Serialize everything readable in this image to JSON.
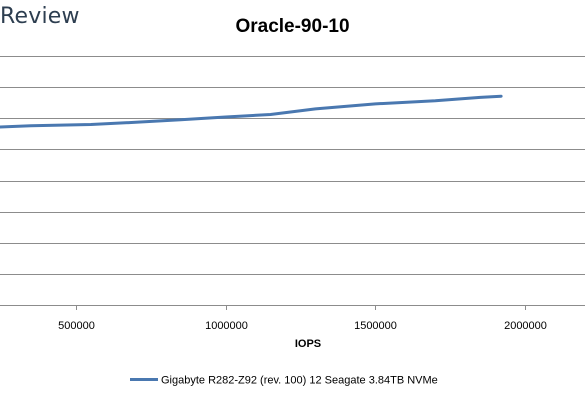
{
  "brand": {
    "text": "Review"
  },
  "chart_data": {
    "type": "line",
    "title": "Oracle-90-10",
    "xlabel": "IOPS",
    "ylabel": "",
    "xlim": [
      200000,
      2200000
    ],
    "ylim": [
      0,
      8
    ],
    "x_ticks": [
      500000,
      1000000,
      1500000,
      2000000
    ],
    "y_gridlines": [
      1,
      2,
      3,
      4,
      5,
      6,
      7,
      8
    ],
    "grid": true,
    "legend": "bottom",
    "series": [
      {
        "name": "Gigabyte R282-Z92 (rev. 100) 12 Seagate 3.84TB NVMe",
        "color": "#4a78b0",
        "x": [
          200000,
          350000,
          550000,
          700000,
          850000,
          1000000,
          1150000,
          1300000,
          1500000,
          1700000,
          1850000,
          1920000
        ],
        "y": [
          5.7,
          5.76,
          5.8,
          5.87,
          5.95,
          6.04,
          6.12,
          6.3,
          6.46,
          6.56,
          6.67,
          6.71
        ]
      }
    ]
  }
}
